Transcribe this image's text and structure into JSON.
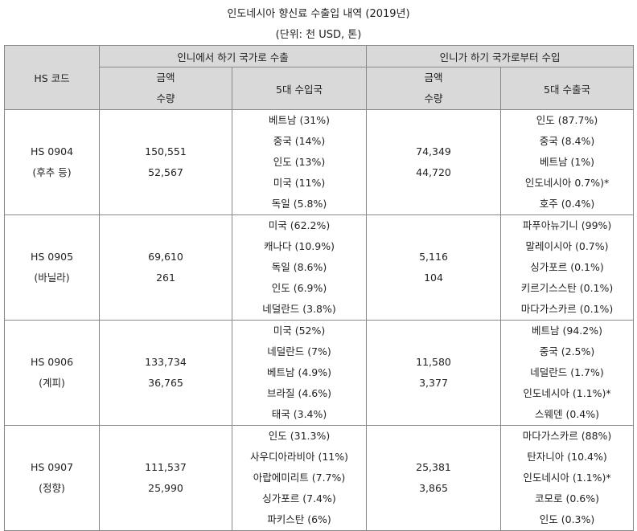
{
  "title": "인도네시아 향신료 수출입 내역 (2019년)",
  "unit": "(단위: 천 USD, 톤)",
  "headers": {
    "hs_code": "HS 코드",
    "export_group": "인니에서 하기 국가로 수출",
    "import_group": "인니가  하기 국가로부터 수입",
    "export_amount": "금액",
    "export_qty": "수량",
    "export_top5": "5대 수입국",
    "import_amount": "금액",
    "import_qty": "수량",
    "import_top5": "5대 수출국"
  },
  "rows": [
    {
      "code": "HS 0904",
      "name": "(후추 등)",
      "export_amount": "150,551",
      "export_qty": "52,567",
      "export_countries": [
        "베트남 (31%)",
        "중국 (14%)",
        "인도 (13%)",
        "미국 (11%)",
        "독일 (5.8%)"
      ],
      "import_amount": "74,349",
      "import_qty": "44,720",
      "import_countries": [
        "인도 (87.7%)",
        "중국 (8.4%)",
        "베트남 (1%)",
        "인도네시아 0.7%)*",
        "호주 (0.4%)"
      ]
    },
    {
      "code": "HS 0905",
      "name": "(바닐라)",
      "export_amount": "69,610",
      "export_qty": "261",
      "export_countries": [
        "미국 (62.2%)",
        "캐나다 (10.9%)",
        "독일 (8.6%)",
        "인도 (6.9%)",
        "네덜란드 (3.8%)"
      ],
      "import_amount": "5,116",
      "import_qty": "104",
      "import_countries": [
        "파푸아뉴기니 (99%)",
        "말레이시아 (0.7%)",
        "싱가포르 (0.1%)",
        "키르기스스탄 (0.1%)",
        "마다가스카르 (0.1%)"
      ]
    },
    {
      "code": "HS 0906",
      "name": "(계피)",
      "export_amount": "133,734",
      "export_qty": "36,765",
      "export_countries": [
        "미국 (52%)",
        "네덜란드 (7%)",
        "베트남 (4.9%)",
        "브라질 (4.6%)",
        "태국 (3.4%)"
      ],
      "import_amount": "11,580",
      "import_qty": "3,377",
      "import_countries": [
        "베트남 (94.2%)",
        "중국 (2.5%)",
        "네덜란드 (1.7%)",
        "인도네시아 (1.1%)*",
        "스웨덴 (0.4%)"
      ]
    },
    {
      "code": "HS 0907",
      "name": "(정향)",
      "export_amount": "111,537",
      "export_qty": "25,990",
      "export_countries": [
        "인도 (31.3%)",
        "사우디아라비아 (11%)",
        "아랍에미리트 (7.7%)",
        "싱가포르 (7.4%)",
        "파키스탄 (6%)"
      ],
      "import_amount": "25,381",
      "import_qty": "3,865",
      "import_countries": [
        "마다가스카르 (88%)",
        "탄자니아 (10.4%)",
        "인도네시아 (1.1%)*",
        "코모로 (0.6%)",
        "인도 (0.3%)"
      ]
    }
  ]
}
